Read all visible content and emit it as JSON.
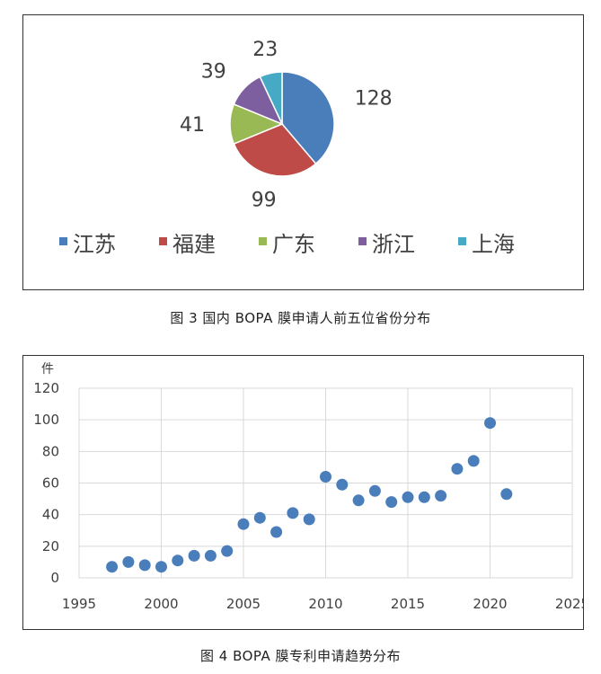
{
  "captions": {
    "fig3": "图 3  国内 BOPA 膜申请人前五位省份分布",
    "fig4": "图 4  BOPA 膜专利申请趋势分布"
  },
  "chart_data": [
    {
      "type": "pie",
      "title": "",
      "slices": [
        {
          "label": "江苏",
          "value": 128,
          "color": "#4A7EBB"
        },
        {
          "label": "福建",
          "value": 99,
          "color": "#BE4B48"
        },
        {
          "label": "广东",
          "value": 41,
          "color": "#98B954"
        },
        {
          "label": "浙江",
          "value": 39,
          "color": "#7D5FA0"
        },
        {
          "label": "上海",
          "value": 23,
          "color": "#46AAC5"
        }
      ],
      "legend_position": "bottom",
      "data_labels": "outside"
    },
    {
      "type": "scatter",
      "title": "",
      "ylabel": "件",
      "xlabel": "",
      "xlim": [
        1995,
        2025
      ],
      "ylim": [
        0,
        120
      ],
      "xticks": [
        1995,
        2000,
        2005,
        2010,
        2015,
        2020,
        2025
      ],
      "yticks": [
        0,
        20,
        40,
        60,
        80,
        100,
        120
      ],
      "grid": true,
      "marker_color": "#4A7EBB",
      "series": [
        {
          "x": [
            1997,
            1998,
            1999,
            2000,
            2001,
            2002,
            2003,
            2004,
            2005,
            2006,
            2007,
            2008,
            2009,
            2010,
            2011,
            2012,
            2013,
            2014,
            2015,
            2016,
            2017,
            2018,
            2019,
            2020,
            2021
          ],
          "y": [
            7,
            10,
            8,
            7,
            11,
            14,
            14,
            17,
            34,
            38,
            29,
            41,
            37,
            64,
            59,
            49,
            55,
            48,
            51,
            51,
            52,
            69,
            74,
            98,
            53
          ]
        }
      ]
    }
  ]
}
